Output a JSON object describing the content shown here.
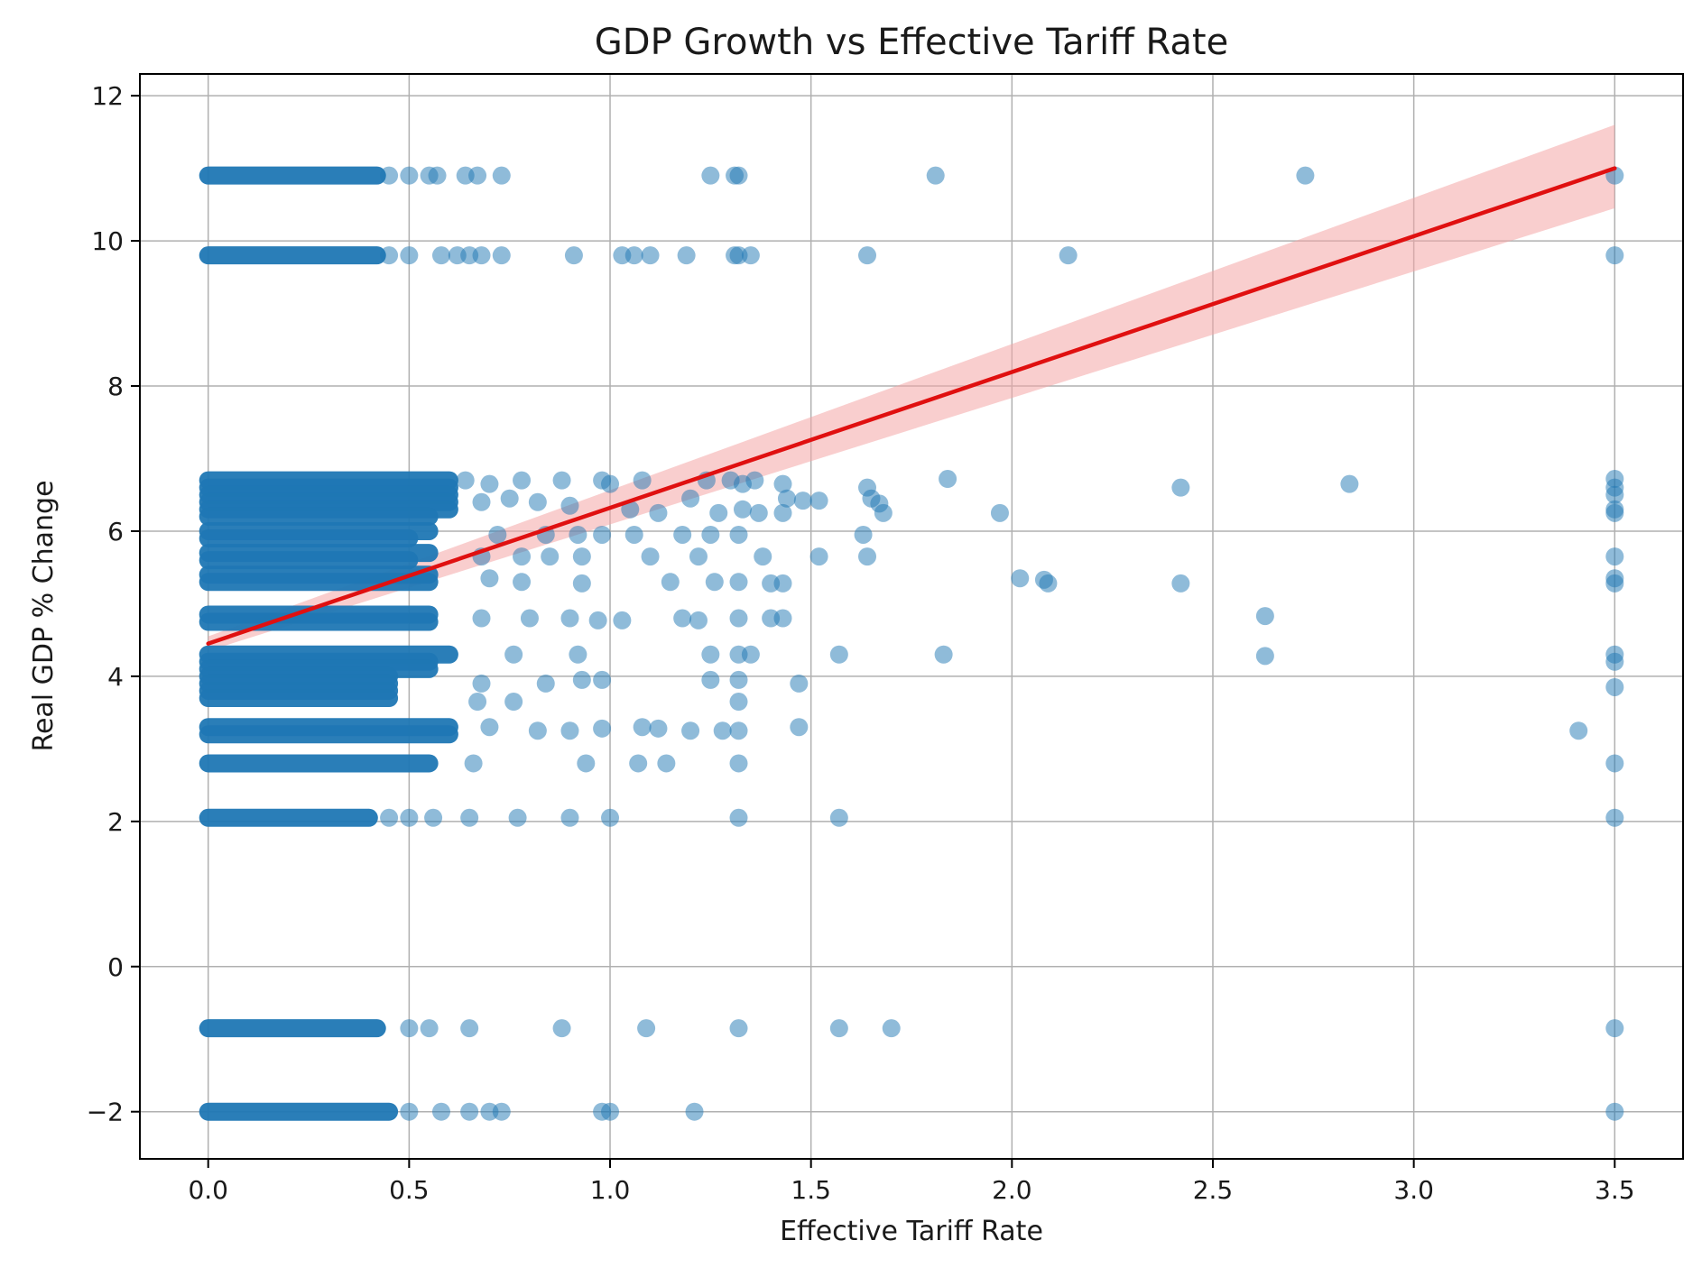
{
  "chart_data": {
    "type": "scatter",
    "title": "GDP Growth vs Effective Tariff Rate",
    "xlabel": "Effective Tariff Rate",
    "ylabel": "Real GDP % Change",
    "xlim": [
      -0.17,
      3.67
    ],
    "ylim": [
      -2.65,
      12.3
    ],
    "xticks": [
      0.0,
      0.5,
      1.0,
      1.5,
      2.0,
      2.5,
      3.0,
      3.5
    ],
    "xtick_labels": [
      "0.0",
      "0.5",
      "1.0",
      "1.5",
      "2.0",
      "2.5",
      "3.0",
      "3.5"
    ],
    "yticks": [
      -2,
      0,
      2,
      4,
      6,
      8,
      10,
      12
    ],
    "ytick_labels": [
      "−2",
      "0",
      "2",
      "4",
      "6",
      "8",
      "10",
      "12"
    ],
    "grid": true,
    "colors": {
      "points": "#1f77b4",
      "regression_line": "#e01010",
      "confidence_band": "#f4a6a6",
      "grid": "#b0b0b0",
      "axis": "#000000"
    },
    "series": [
      {
        "name": "observations",
        "dense_bands": [
          {
            "y": 10.9,
            "x_range": [
              0.0,
              0.42
            ]
          },
          {
            "y": 9.8,
            "x_range": [
              0.0,
              0.42
            ]
          },
          {
            "y": 6.7,
            "x_range": [
              0.0,
              0.6
            ]
          },
          {
            "y": 6.6,
            "x_range": [
              0.0,
              0.6
            ]
          },
          {
            "y": 6.5,
            "x_range": [
              0.0,
              0.6
            ]
          },
          {
            "y": 6.4,
            "x_range": [
              0.0,
              0.6
            ]
          },
          {
            "y": 6.3,
            "x_range": [
              0.0,
              0.6
            ]
          },
          {
            "y": 6.2,
            "x_range": [
              0.0,
              0.55
            ]
          },
          {
            "y": 6.0,
            "x_range": [
              0.0,
              0.55
            ]
          },
          {
            "y": 5.9,
            "x_range": [
              0.0,
              0.5
            ]
          },
          {
            "y": 5.7,
            "x_range": [
              0.0,
              0.55
            ]
          },
          {
            "y": 5.6,
            "x_range": [
              0.0,
              0.5
            ]
          },
          {
            "y": 5.4,
            "x_range": [
              0.0,
              0.55
            ]
          },
          {
            "y": 5.3,
            "x_range": [
              0.0,
              0.55
            ]
          },
          {
            "y": 4.85,
            "x_range": [
              0.0,
              0.55
            ]
          },
          {
            "y": 4.75,
            "x_range": [
              0.0,
              0.55
            ]
          },
          {
            "y": 4.3,
            "x_range": [
              0.0,
              0.6
            ]
          },
          {
            "y": 4.2,
            "x_range": [
              0.0,
              0.55
            ]
          },
          {
            "y": 4.1,
            "x_range": [
              0.0,
              0.55
            ]
          },
          {
            "y": 4.0,
            "x_range": [
              0.0,
              0.45
            ]
          },
          {
            "y": 3.9,
            "x_range": [
              0.0,
              0.45
            ]
          },
          {
            "y": 3.8,
            "x_range": [
              0.0,
              0.45
            ]
          },
          {
            "y": 3.7,
            "x_range": [
              0.0,
              0.45
            ]
          },
          {
            "y": 3.3,
            "x_range": [
              0.0,
              0.6
            ]
          },
          {
            "y": 3.2,
            "x_range": [
              0.0,
              0.6
            ]
          },
          {
            "y": 2.8,
            "x_range": [
              0.0,
              0.55
            ]
          },
          {
            "y": 2.05,
            "x_range": [
              0.0,
              0.4
            ]
          },
          {
            "y": -0.85,
            "x_range": [
              0.0,
              0.42
            ]
          },
          {
            "y": -2.0,
            "x_range": [
              0.0,
              0.45
            ]
          }
        ],
        "points": [
          [
            0.45,
            10.9
          ],
          [
            0.5,
            10.9
          ],
          [
            0.55,
            10.9
          ],
          [
            0.57,
            10.9
          ],
          [
            0.64,
            10.9
          ],
          [
            0.67,
            10.9
          ],
          [
            0.73,
            10.9
          ],
          [
            1.25,
            10.9
          ],
          [
            1.31,
            10.9
          ],
          [
            1.32,
            10.9
          ],
          [
            1.81,
            10.9
          ],
          [
            2.73,
            10.9
          ],
          [
            3.5,
            10.9
          ],
          [
            0.45,
            9.8
          ],
          [
            0.5,
            9.8
          ],
          [
            0.58,
            9.8
          ],
          [
            0.62,
            9.8
          ],
          [
            0.65,
            9.8
          ],
          [
            0.68,
            9.8
          ],
          [
            0.73,
            9.8
          ],
          [
            0.91,
            9.8
          ],
          [
            1.03,
            9.8
          ],
          [
            1.06,
            9.8
          ],
          [
            1.1,
            9.8
          ],
          [
            1.19,
            9.8
          ],
          [
            1.31,
            9.8
          ],
          [
            1.32,
            9.8
          ],
          [
            1.35,
            9.8
          ],
          [
            1.64,
            9.8
          ],
          [
            2.14,
            9.8
          ],
          [
            3.5,
            9.8
          ],
          [
            0.64,
            6.7
          ],
          [
            0.7,
            6.65
          ],
          [
            0.78,
            6.7
          ],
          [
            0.88,
            6.7
          ],
          [
            0.98,
            6.7
          ],
          [
            1.0,
            6.65
          ],
          [
            1.08,
            6.7
          ],
          [
            1.24,
            6.7
          ],
          [
            1.3,
            6.7
          ],
          [
            1.33,
            6.65
          ],
          [
            1.36,
            6.7
          ],
          [
            1.43,
            6.65
          ],
          [
            1.64,
            6.6
          ],
          [
            1.84,
            6.72
          ],
          [
            2.42,
            6.6
          ],
          [
            2.84,
            6.65
          ],
          [
            0.68,
            6.4
          ],
          [
            0.75,
            6.45
          ],
          [
            0.82,
            6.4
          ],
          [
            0.9,
            6.35
          ],
          [
            1.05,
            6.3
          ],
          [
            1.12,
            6.25
          ],
          [
            1.2,
            6.45
          ],
          [
            1.27,
            6.25
          ],
          [
            1.33,
            6.3
          ],
          [
            1.37,
            6.25
          ],
          [
            1.44,
            6.45
          ],
          [
            1.48,
            6.42
          ],
          [
            1.52,
            6.42
          ],
          [
            1.65,
            6.45
          ],
          [
            1.67,
            6.38
          ],
          [
            1.68,
            6.25
          ],
          [
            1.97,
            6.25
          ],
          [
            1.43,
            6.25
          ],
          [
            0.72,
            5.95
          ],
          [
            0.84,
            5.95
          ],
          [
            0.92,
            5.95
          ],
          [
            0.98,
            5.95
          ],
          [
            1.06,
            5.95
          ],
          [
            1.18,
            5.95
          ],
          [
            1.25,
            5.95
          ],
          [
            1.32,
            5.95
          ],
          [
            1.63,
            5.95
          ],
          [
            0.68,
            5.65
          ],
          [
            0.78,
            5.65
          ],
          [
            0.85,
            5.65
          ],
          [
            0.93,
            5.65
          ],
          [
            1.1,
            5.65
          ],
          [
            1.22,
            5.65
          ],
          [
            1.38,
            5.65
          ],
          [
            1.52,
            5.65
          ],
          [
            1.64,
            5.65
          ],
          [
            0.7,
            5.35
          ],
          [
            0.78,
            5.3
          ],
          [
            0.93,
            5.28
          ],
          [
            1.15,
            5.3
          ],
          [
            1.26,
            5.3
          ],
          [
            1.32,
            5.3
          ],
          [
            1.4,
            5.28
          ],
          [
            1.43,
            5.28
          ],
          [
            2.02,
            5.35
          ],
          [
            2.08,
            5.33
          ],
          [
            2.09,
            5.28
          ],
          [
            2.42,
            5.28
          ],
          [
            0.68,
            4.8
          ],
          [
            0.8,
            4.8
          ],
          [
            0.9,
            4.8
          ],
          [
            0.97,
            4.77
          ],
          [
            1.03,
            4.77
          ],
          [
            1.18,
            4.8
          ],
          [
            1.22,
            4.77
          ],
          [
            1.32,
            4.8
          ],
          [
            1.4,
            4.8
          ],
          [
            1.43,
            4.8
          ],
          [
            2.63,
            4.83
          ],
          [
            0.76,
            4.3
          ],
          [
            0.92,
            4.3
          ],
          [
            1.25,
            4.3
          ],
          [
            1.32,
            4.3
          ],
          [
            1.35,
            4.3
          ],
          [
            1.57,
            4.3
          ],
          [
            1.83,
            4.3
          ],
          [
            2.63,
            4.28
          ],
          [
            0.68,
            3.9
          ],
          [
            0.84,
            3.9
          ],
          [
            0.93,
            3.95
          ],
          [
            0.98,
            3.95
          ],
          [
            1.25,
            3.95
          ],
          [
            1.32,
            3.95
          ],
          [
            1.47,
            3.9
          ],
          [
            0.67,
            3.65
          ],
          [
            0.76,
            3.65
          ],
          [
            1.32,
            3.65
          ],
          [
            0.7,
            3.3
          ],
          [
            0.82,
            3.25
          ],
          [
            0.9,
            3.25
          ],
          [
            0.98,
            3.28
          ],
          [
            1.08,
            3.3
          ],
          [
            1.12,
            3.28
          ],
          [
            1.2,
            3.25
          ],
          [
            1.28,
            3.25
          ],
          [
            1.32,
            3.25
          ],
          [
            1.47,
            3.3
          ],
          [
            3.41,
            3.25
          ],
          [
            0.66,
            2.8
          ],
          [
            0.94,
            2.8
          ],
          [
            1.07,
            2.8
          ],
          [
            1.14,
            2.8
          ],
          [
            1.32,
            2.8
          ],
          [
            3.5,
            2.8
          ],
          [
            0.45,
            2.05
          ],
          [
            0.5,
            2.05
          ],
          [
            0.56,
            2.05
          ],
          [
            0.65,
            2.05
          ],
          [
            0.77,
            2.05
          ],
          [
            0.9,
            2.05
          ],
          [
            1.0,
            2.05
          ],
          [
            1.32,
            2.05
          ],
          [
            1.57,
            2.05
          ],
          [
            3.5,
            2.05
          ],
          [
            0.5,
            -0.85
          ],
          [
            0.55,
            -0.85
          ],
          [
            0.65,
            -0.85
          ],
          [
            0.88,
            -0.85
          ],
          [
            1.09,
            -0.85
          ],
          [
            1.32,
            -0.85
          ],
          [
            1.57,
            -0.85
          ],
          [
            1.7,
            -0.85
          ],
          [
            3.5,
            -0.85
          ],
          [
            0.5,
            -2.0
          ],
          [
            0.58,
            -2.0
          ],
          [
            0.65,
            -2.0
          ],
          [
            0.7,
            -2.0
          ],
          [
            0.73,
            -2.0
          ],
          [
            0.98,
            -2.0
          ],
          [
            1.0,
            -2.0
          ],
          [
            1.21,
            -2.0
          ],
          [
            3.5,
            -2.0
          ],
          [
            3.5,
            6.72
          ],
          [
            3.5,
            6.6
          ],
          [
            3.5,
            6.5
          ],
          [
            3.5,
            6.3
          ],
          [
            3.5,
            6.25
          ],
          [
            3.5,
            5.65
          ],
          [
            3.5,
            5.35
          ],
          [
            3.5,
            5.28
          ],
          [
            3.5,
            4.3
          ],
          [
            3.5,
            4.2
          ],
          [
            3.5,
            3.85
          ]
        ]
      }
    ],
    "regression": {
      "x": [
        0.0,
        3.5
      ],
      "y": [
        4.45,
        11.0
      ],
      "ci_lower": [
        4.35,
        10.45
      ],
      "ci_upper": [
        4.55,
        11.6
      ]
    }
  }
}
